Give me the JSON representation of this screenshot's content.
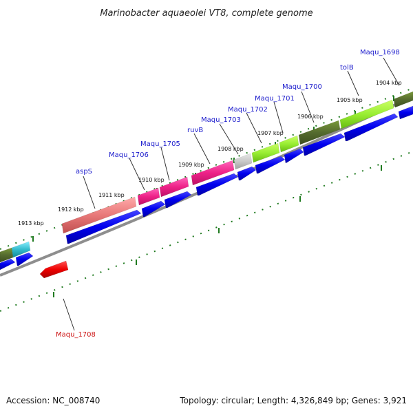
{
  "title": "Marinobacter aquaeolei VT8, complete genome",
  "footer": {
    "accession": "Accession: NC_008740",
    "summary": "Topology: circular; Length: 4,326,849 bp; Genes: 3,921"
  },
  "kbp_ticks": [
    {
      "label": "1904 kbp"
    },
    {
      "label": "1905 kbp"
    },
    {
      "label": "1906 kbp"
    },
    {
      "label": "1907 kbp"
    },
    {
      "label": "1908 kbp"
    },
    {
      "label": "1909 kbp"
    },
    {
      "label": "1910 kbp"
    },
    {
      "label": "1911 kbp"
    },
    {
      "label": "1912 kbp"
    },
    {
      "label": "1913 kbp"
    }
  ],
  "gene_labels": [
    {
      "name": "Maqu_1698",
      "strand": "forward"
    },
    {
      "name": "tolB",
      "strand": "forward"
    },
    {
      "name": "Maqu_1700",
      "strand": "forward"
    },
    {
      "name": "Maqu_1701",
      "strand": "forward"
    },
    {
      "name": "Maqu_1702",
      "strand": "forward"
    },
    {
      "name": "Maqu_1703",
      "strand": "forward"
    },
    {
      "name": "ruvB",
      "strand": "forward"
    },
    {
      "name": "Maqu_1705",
      "strand": "forward"
    },
    {
      "name": "Maqu_1706",
      "strand": "forward"
    },
    {
      "name": "aspS",
      "strand": "forward"
    },
    {
      "name": "Maqu_1708",
      "strand": "reverse"
    }
  ],
  "colors": {
    "cds": "#0000ee",
    "reverse_cds": "#ee0000",
    "backbone": "#888888",
    "ticks": "#1f7a1f",
    "cog": [
      "#556b2f",
      "#66cc33",
      "#ee2288",
      "#e87878",
      "#c8c8c8",
      "#33bbcc"
    ]
  }
}
